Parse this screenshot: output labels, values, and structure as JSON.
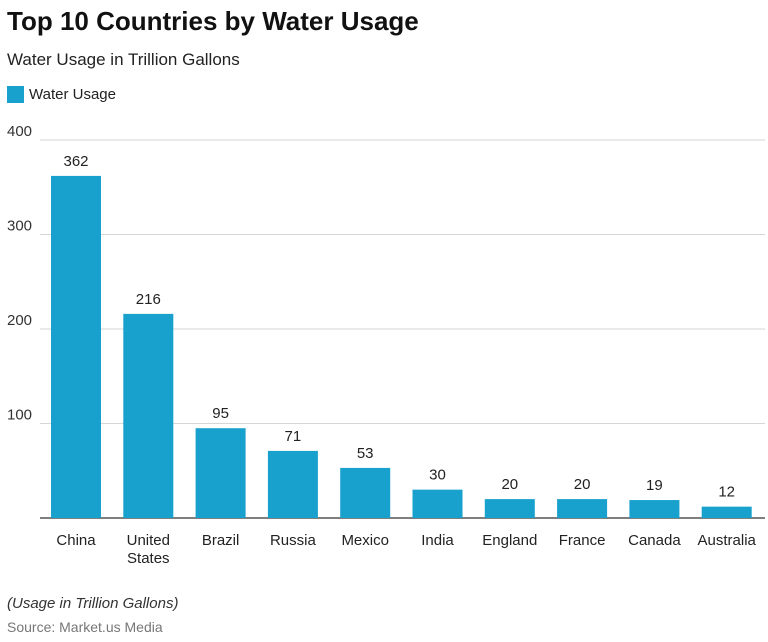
{
  "chart_data": {
    "type": "bar",
    "title": "Top 10 Countries by Water Usage",
    "subtitle": "Water Usage in Trillion Gallons",
    "categories": [
      "China",
      "United States",
      "Brazil",
      "Russia",
      "Mexico",
      "India",
      "England",
      "France",
      "Canada",
      "Australia"
    ],
    "series": [
      {
        "name": "Water Usage",
        "values": [
          362,
          216,
          95,
          71,
          53,
          30,
          20,
          20,
          19,
          12
        ],
        "color": "#18a1cd"
      }
    ],
    "ylim": [
      0,
      400
    ],
    "yticks": [
      100,
      200,
      300,
      400
    ],
    "grid": true,
    "legend": "top-left",
    "xlabel": "",
    "ylabel": ""
  },
  "footer": {
    "note": "(Usage in Trillion Gallons)",
    "source": "Source: Market.us Media"
  }
}
